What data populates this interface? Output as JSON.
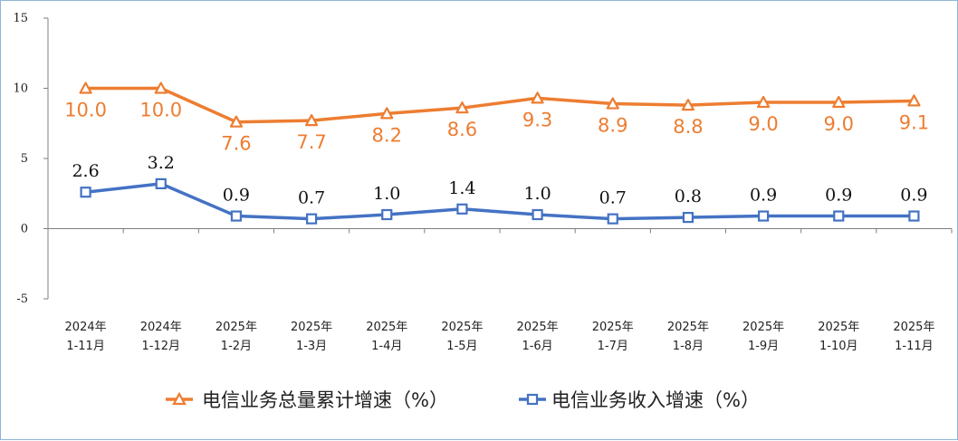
{
  "chart_data": {
    "type": "line",
    "categories": [
      [
        "2024年",
        "1-11月"
      ],
      [
        "2024年",
        "1-12月"
      ],
      [
        "2025年",
        "1-2月"
      ],
      [
        "2025年",
        "1-3月"
      ],
      [
        "2025年",
        "1-4月"
      ],
      [
        "2025年",
        "1-5月"
      ],
      [
        "2025年",
        "1-6月"
      ],
      [
        "2025年",
        "1-7月"
      ],
      [
        "2025年",
        "1-8月"
      ],
      [
        "2025年",
        "1-9月"
      ],
      [
        "2025年",
        "1-10月"
      ],
      [
        "2025年",
        "1-11月"
      ]
    ],
    "ylim": [
      -5,
      15
    ],
    "yticks": [
      -5,
      0,
      5,
      10,
      15
    ],
    "grid": false,
    "legend_position": "bottom",
    "series": [
      {
        "name": "电信业务总量累计增速（%）",
        "color": "#ed7d31",
        "marker": "triangle",
        "values": [
          10.0,
          10.0,
          7.6,
          7.7,
          8.2,
          8.6,
          9.3,
          8.9,
          8.8,
          9.0,
          9.0,
          9.1
        ],
        "labels": [
          "10.0",
          "10.0",
          "7.6",
          "7.7",
          "8.2",
          "8.6",
          "9.3",
          "8.9",
          "8.8",
          "9.0",
          "9.0",
          "9.1"
        ]
      },
      {
        "name": "电信业务收入增速（%）",
        "color": "#4472c4",
        "marker": "square",
        "values": [
          2.6,
          3.2,
          0.9,
          0.7,
          1.0,
          1.4,
          1.0,
          0.7,
          0.8,
          0.9,
          0.9,
          0.9
        ],
        "labels": [
          "2.6",
          "3.2",
          "0.9",
          "0.7",
          "1.0",
          "1.4",
          "1.0",
          "0.7",
          "0.8",
          "0.9",
          "0.9",
          "0.9"
        ]
      }
    ]
  }
}
